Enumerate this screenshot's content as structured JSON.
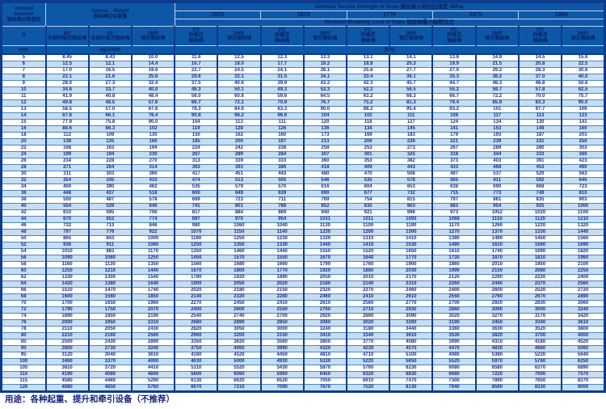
{
  "colors": {
    "header_blue": "#0d57a8",
    "dark_border": "#0b3c8e",
    "stripe_blue": "#c6def1",
    "data_text_navy": "#223084"
  },
  "table": {
    "corner": {
      "line1": "nominal",
      "line2": "diameter",
      "line3": "钢丝绳公称直径"
    },
    "weight_header": {
      "line1": "Approx．Weight",
      "line2": "钢丝绳近似重量"
    },
    "tensile_title": "Nominal  Tensile  Strength  of  Rope  钢丝绳公称抗拉强度  (MPa)",
    "breaking_title": "Minimun  Breaking  Load  of  Rope  钢丝绳最小破断拉力",
    "strengths": [
      "1570",
      "1670",
      "1770",
      "1870",
      "1960"
    ],
    "col_d": "D",
    "weight_cols": [
      {
        "abbr": "NF",
        "cn": "天然纤维芯钢丝绳"
      },
      {
        "abbr": "SF",
        "cn": "合成纤维芯钢丝绳"
      },
      {
        "abbr": "IWR",
        "cn": "钢芯钢丝绳"
      }
    ],
    "fc_label": {
      "abbr": "FC",
      "cn1": "纤维芯",
      "cn2": "钢丝绳"
    },
    "iwr_label": {
      "abbr": "IWR",
      "cn1": "钢芯钢丝绳",
      "cn2": ""
    },
    "units": {
      "d": "mm",
      "weight": "kg/100m",
      "load": "(KN)"
    },
    "rows": [
      [
        "5",
        "8.45",
        "8.43",
        "10.0",
        "11.6",
        "12.5",
        "12.3",
        "13.3",
        "13.1",
        "14.1",
        "13.8",
        "14.9",
        "14.5",
        "15.6"
      ],
      [
        "6",
        "12.5",
        "12.1",
        "14.4",
        "16.7",
        "18.0",
        "17.7",
        "19.2",
        "18.8",
        "20.3",
        "19.9",
        "21.5",
        "20.8",
        "22.5"
      ],
      [
        "7",
        "17.0",
        "16.5",
        "19.6",
        "22.7",
        "24.5",
        "24.1",
        "26.1",
        "25.6",
        "27.7",
        "27.0",
        "29.2",
        "28.3",
        "30.6"
      ],
      [
        "8",
        "22.1",
        "21.6",
        "25.6",
        "29.6",
        "32.1",
        "31.5",
        "34.1",
        "33.4",
        "36.1",
        "35.3",
        "38.2",
        "37.0",
        "40.0"
      ],
      [
        "9",
        "28.0",
        "27.3",
        "32.4",
        "37.5",
        "40.6",
        "39.9",
        "43.2",
        "42.3",
        "45.7",
        "44.7",
        "48.3",
        "46.8",
        "50.6"
      ],
      [
        "10",
        "34.6",
        "33.7",
        "40.0",
        "46.3",
        "50.1",
        "49.3",
        "53.3",
        "52.2",
        "56.5",
        "55.2",
        "59.7",
        "57.8",
        "62.5"
      ],
      [
        "11",
        "41.9",
        "40.8",
        "48.4",
        "56.0",
        "60.6",
        "59.6",
        "64.5",
        "63.2",
        "68.3",
        "66.7",
        "72.2",
        "70.0",
        "75.7"
      ],
      [
        "12",
        "49.8",
        "48.5",
        "57.6",
        "66.7",
        "72.1",
        "70.9",
        "76.7",
        "75.2",
        "81.3",
        "79.4",
        "85.9",
        "83.3",
        "90.0"
      ],
      [
        "13",
        "58.5",
        "57.0",
        "67.6",
        "78.3",
        "84.6",
        "83.3",
        "90.0",
        "88.2",
        "95.4",
        "93.2",
        "101",
        "97.7",
        "106"
      ],
      [
        "14",
        "67.8",
        "66.1",
        "78.4",
        "90.8",
        "98.2",
        "96.6",
        "104",
        "102",
        "111",
        "108",
        "117",
        "113",
        "123"
      ],
      [
        "15",
        "77.9",
        "75.8",
        "90.0",
        "104",
        "113",
        "111",
        "120",
        "118",
        "127",
        "124",
        "134",
        "130",
        "141"
      ],
      [
        "16",
        "88.6",
        "86.3",
        "102",
        "119",
        "128",
        "126",
        "136",
        "134",
        "145",
        "141",
        "153",
        "148",
        "160"
      ],
      [
        "18",
        "112",
        "109",
        "130",
        "150",
        "162",
        "160",
        "173",
        "169",
        "183",
        "179",
        "193",
        "187",
        "203"
      ],
      [
        "20",
        "138",
        "135",
        "160",
        "185",
        "200",
        "197",
        "213",
        "209",
        "226",
        "221",
        "239",
        "231",
        "250"
      ],
      [
        "22",
        "168",
        "163",
        "194",
        "224",
        "242",
        "238",
        "258",
        "253",
        "273",
        "267",
        "289",
        "280",
        "303"
      ],
      [
        "24",
        "199",
        "194",
        "230",
        "267",
        "289",
        "284",
        "307",
        "301",
        "325",
        "318",
        "344",
        "333",
        "360"
      ],
      [
        "26",
        "234",
        "228",
        "270",
        "313",
        "339",
        "333",
        "360",
        "353",
        "382",
        "373",
        "403",
        "391",
        "423"
      ],
      [
        "28",
        "271",
        "264",
        "314",
        "363",
        "393",
        "386",
        "418",
        "409",
        "443",
        "433",
        "468",
        "453",
        "490"
      ],
      [
        "30",
        "311",
        "303",
        "360",
        "417",
        "451",
        "443",
        "480",
        "470",
        "508",
        "497",
        "537",
        "520",
        "563"
      ],
      [
        "32",
        "354",
        "345",
        "410",
        "474",
        "513",
        "505",
        "546",
        "535",
        "578",
        "565",
        "611",
        "592",
        "640"
      ],
      [
        "34",
        "400",
        "390",
        "462",
        "535",
        "579",
        "570",
        "616",
        "604",
        "653",
        "638",
        "690",
        "668",
        "723"
      ],
      [
        "36",
        "448",
        "437",
        "518",
        "600",
        "649",
        "639",
        "690",
        "677",
        "732",
        "715",
        "773",
        "749",
        "810"
      ],
      [
        "38",
        "500",
        "487",
        "578",
        "669",
        "723",
        "711",
        "769",
        "754",
        "815",
        "797",
        "861",
        "835",
        "903"
      ],
      [
        "40",
        "554",
        "539",
        "640",
        "741",
        "801",
        "788",
        "852",
        "835",
        "903",
        "883",
        "954",
        "925",
        "1000"
      ],
      [
        "42",
        "610",
        "595",
        "706",
        "817",
        "884",
        "869",
        "940",
        "921",
        "996",
        "973",
        "1052",
        "1020",
        "1100"
      ],
      [
        "44",
        "670",
        "652",
        "774",
        "897",
        "970",
        "954",
        "1031",
        "1011",
        "1093",
        "1068",
        "1155",
        "1120",
        "1210"
      ],
      [
        "46",
        "732",
        "713",
        "846",
        "980",
        "1060",
        "1040",
        "1130",
        "1100",
        "1190",
        "1170",
        "1260",
        "1220",
        "1320"
      ],
      [
        "48",
        "797",
        "776",
        "922",
        "1070",
        "1150",
        "1140",
        "1230",
        "1200",
        "1300",
        "1270",
        "1370",
        "1330",
        "1440"
      ],
      [
        "50",
        "865",
        "843",
        "1000",
        "1160",
        "1250",
        "1230",
        "1330",
        "1310",
        "1410",
        "1380",
        "1490",
        "1450",
        "1560"
      ],
      [
        "52",
        "936",
        "911",
        "1080",
        "1250",
        "1350",
        "1330",
        "1440",
        "1410",
        "1530",
        "1490",
        "1610",
        "1560",
        "1690"
      ],
      [
        "54",
        "1010",
        "983",
        "1170",
        "1350",
        "1460",
        "1440",
        "1550",
        "1520",
        "1650",
        "1610",
        "1740",
        "1690",
        "1820"
      ],
      [
        "56",
        "1090",
        "1060",
        "1250",
        "1450",
        "1570",
        "1550",
        "1670",
        "1640",
        "1770",
        "1730",
        "1870",
        "1810",
        "1960"
      ],
      [
        "58",
        "1160",
        "1130",
        "1350",
        "1560",
        "1680",
        "1660",
        "1790",
        "1760",
        "1900",
        "1860",
        "2010",
        "1950",
        "2100"
      ],
      [
        "60",
        "1250",
        "1210",
        "1440",
        "1670",
        "1800",
        "1770",
        "1920",
        "1880",
        "2030",
        "1990",
        "2150",
        "2080",
        "2250"
      ],
      [
        "62",
        "1330",
        "1300",
        "1540",
        "1780",
        "1920",
        "1890",
        "2050",
        "2010",
        "2170",
        "2120",
        "2290",
        "2220",
        "2400"
      ],
      [
        "64",
        "1420",
        "1380",
        "1640",
        "1900",
        "2050",
        "2020",
        "2180",
        "2140",
        "2310",
        "2260",
        "2440",
        "2370",
        "2560"
      ],
      [
        "66",
        "1510",
        "1470",
        "1740",
        "2020",
        "2180",
        "2150",
        "2320",
        "2270",
        "2460",
        "2400",
        "2600",
        "2520",
        "2720"
      ],
      [
        "68",
        "1600",
        "1560",
        "1850",
        "2140",
        "2320",
        "2280",
        "2460",
        "2410",
        "2610",
        "2550",
        "2760",
        "2670",
        "2890"
      ],
      [
        "70",
        "1700",
        "1650",
        "1960",
        "2270",
        "2450",
        "2410",
        "2610",
        "2560",
        "2770",
        "2700",
        "2920",
        "2830",
        "3060"
      ],
      [
        "72",
        "1790",
        "1750",
        "2070",
        "2400",
        "2600",
        "2550",
        "2760",
        "2710",
        "2930",
        "2860",
        "3090",
        "3000",
        "3240"
      ],
      [
        "74",
        "1890",
        "1850",
        "2190",
        "2540",
        "2740",
        "2700",
        "2920",
        "2860",
        "3090",
        "3020",
        "3270",
        "3170",
        "3420"
      ],
      [
        "76",
        "2000",
        "1950",
        "2310",
        "2680",
        "2890",
        "2850",
        "3080",
        "3020",
        "3260",
        "3190",
        "3450",
        "3340",
        "3610"
      ],
      [
        "78",
        "2110",
        "2050",
        "2430",
        "2820",
        "3050",
        "3000",
        "3240",
        "3180",
        "3440",
        "3360",
        "3630",
        "3520",
        "3800"
      ],
      [
        "80",
        "2210",
        "2160",
        "2560",
        "2960",
        "3200",
        "3150",
        "3410",
        "3340",
        "3610",
        "3530",
        "3820",
        "3700",
        "4000"
      ],
      [
        "85",
        "2500",
        "2430",
        "2890",
        "3350",
        "3620",
        "3560",
        "3850",
        "3770",
        "4080",
        "3990",
        "4310",
        "4180",
        "4520"
      ],
      [
        "90",
        "2800",
        "2730",
        "3240",
        "3750",
        "4060",
        "3990",
        "4320",
        "4230",
        "4570",
        "4470",
        "4830",
        "4680",
        "5060"
      ],
      [
        "95",
        "3120",
        "3040",
        "3610",
        "4180",
        "4520",
        "4450",
        "4810",
        "4710",
        "5100",
        "4980",
        "5380",
        "5220",
        "5640"
      ],
      [
        "100",
        "3460",
        "3370",
        "4000",
        "4630",
        "5000",
        "4930",
        "5330",
        "5220",
        "5650",
        "5520",
        "5970",
        "5780",
        "6250"
      ],
      [
        "105",
        "3810",
        "3720",
        "4410",
        "5110",
        "5520",
        "5430",
        "5870",
        "5760",
        "6230",
        "6080",
        "6580",
        "6370",
        "6890"
      ],
      [
        "110",
        "4190",
        "4080",
        "4840",
        "5600",
        "6060",
        "5960",
        "6450",
        "6320",
        "6830",
        "6680",
        "7220",
        "7000",
        "7570"
      ],
      [
        "115",
        "4580",
        "4460",
        "5290",
        "6130",
        "6620",
        "6520",
        "7050",
        "6910",
        "7470",
        "7300",
        "7890",
        "7650",
        "8270"
      ],
      [
        "120",
        "4980",
        "4850",
        "5760",
        "6670",
        "7210",
        "7090",
        "7670",
        "7520",
        "8130",
        "7940",
        "8590",
        "8330",
        "9000"
      ]
    ]
  },
  "footer": {
    "note": "用途：各种起重、提升和牵引设备（不推荐）"
  }
}
